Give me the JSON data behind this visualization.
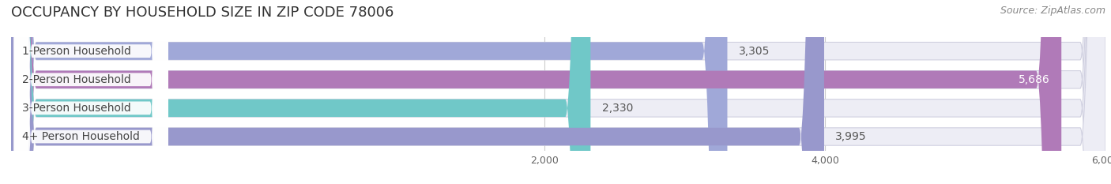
{
  "title": "OCCUPANCY BY HOUSEHOLD SIZE IN ZIP CODE 78006",
  "source": "Source: ZipAtlas.com",
  "categories": [
    "1-Person Household",
    "2-Person Household",
    "3-Person Household",
    "4+ Person Household"
  ],
  "values": [
    3305,
    5686,
    2330,
    3995
  ],
  "bar_colors": [
    "#a0a8d8",
    "#b07ab8",
    "#70c8c8",
    "#9898cc"
  ],
  "bg_bar_color": "#ededf5",
  "label_bg_color": "#ffffff",
  "xlim": [
    -1800,
    6000
  ],
  "xticks": [
    2000,
    4000,
    6000
  ],
  "xtick_labels": [
    "2,000",
    "4,000",
    "6,000"
  ],
  "value_labels": [
    "3,305",
    "5,686",
    "2,330",
    "3,995"
  ],
  "title_fontsize": 13,
  "label_fontsize": 10,
  "value_fontsize": 10,
  "source_fontsize": 9,
  "bar_height": 0.62
}
